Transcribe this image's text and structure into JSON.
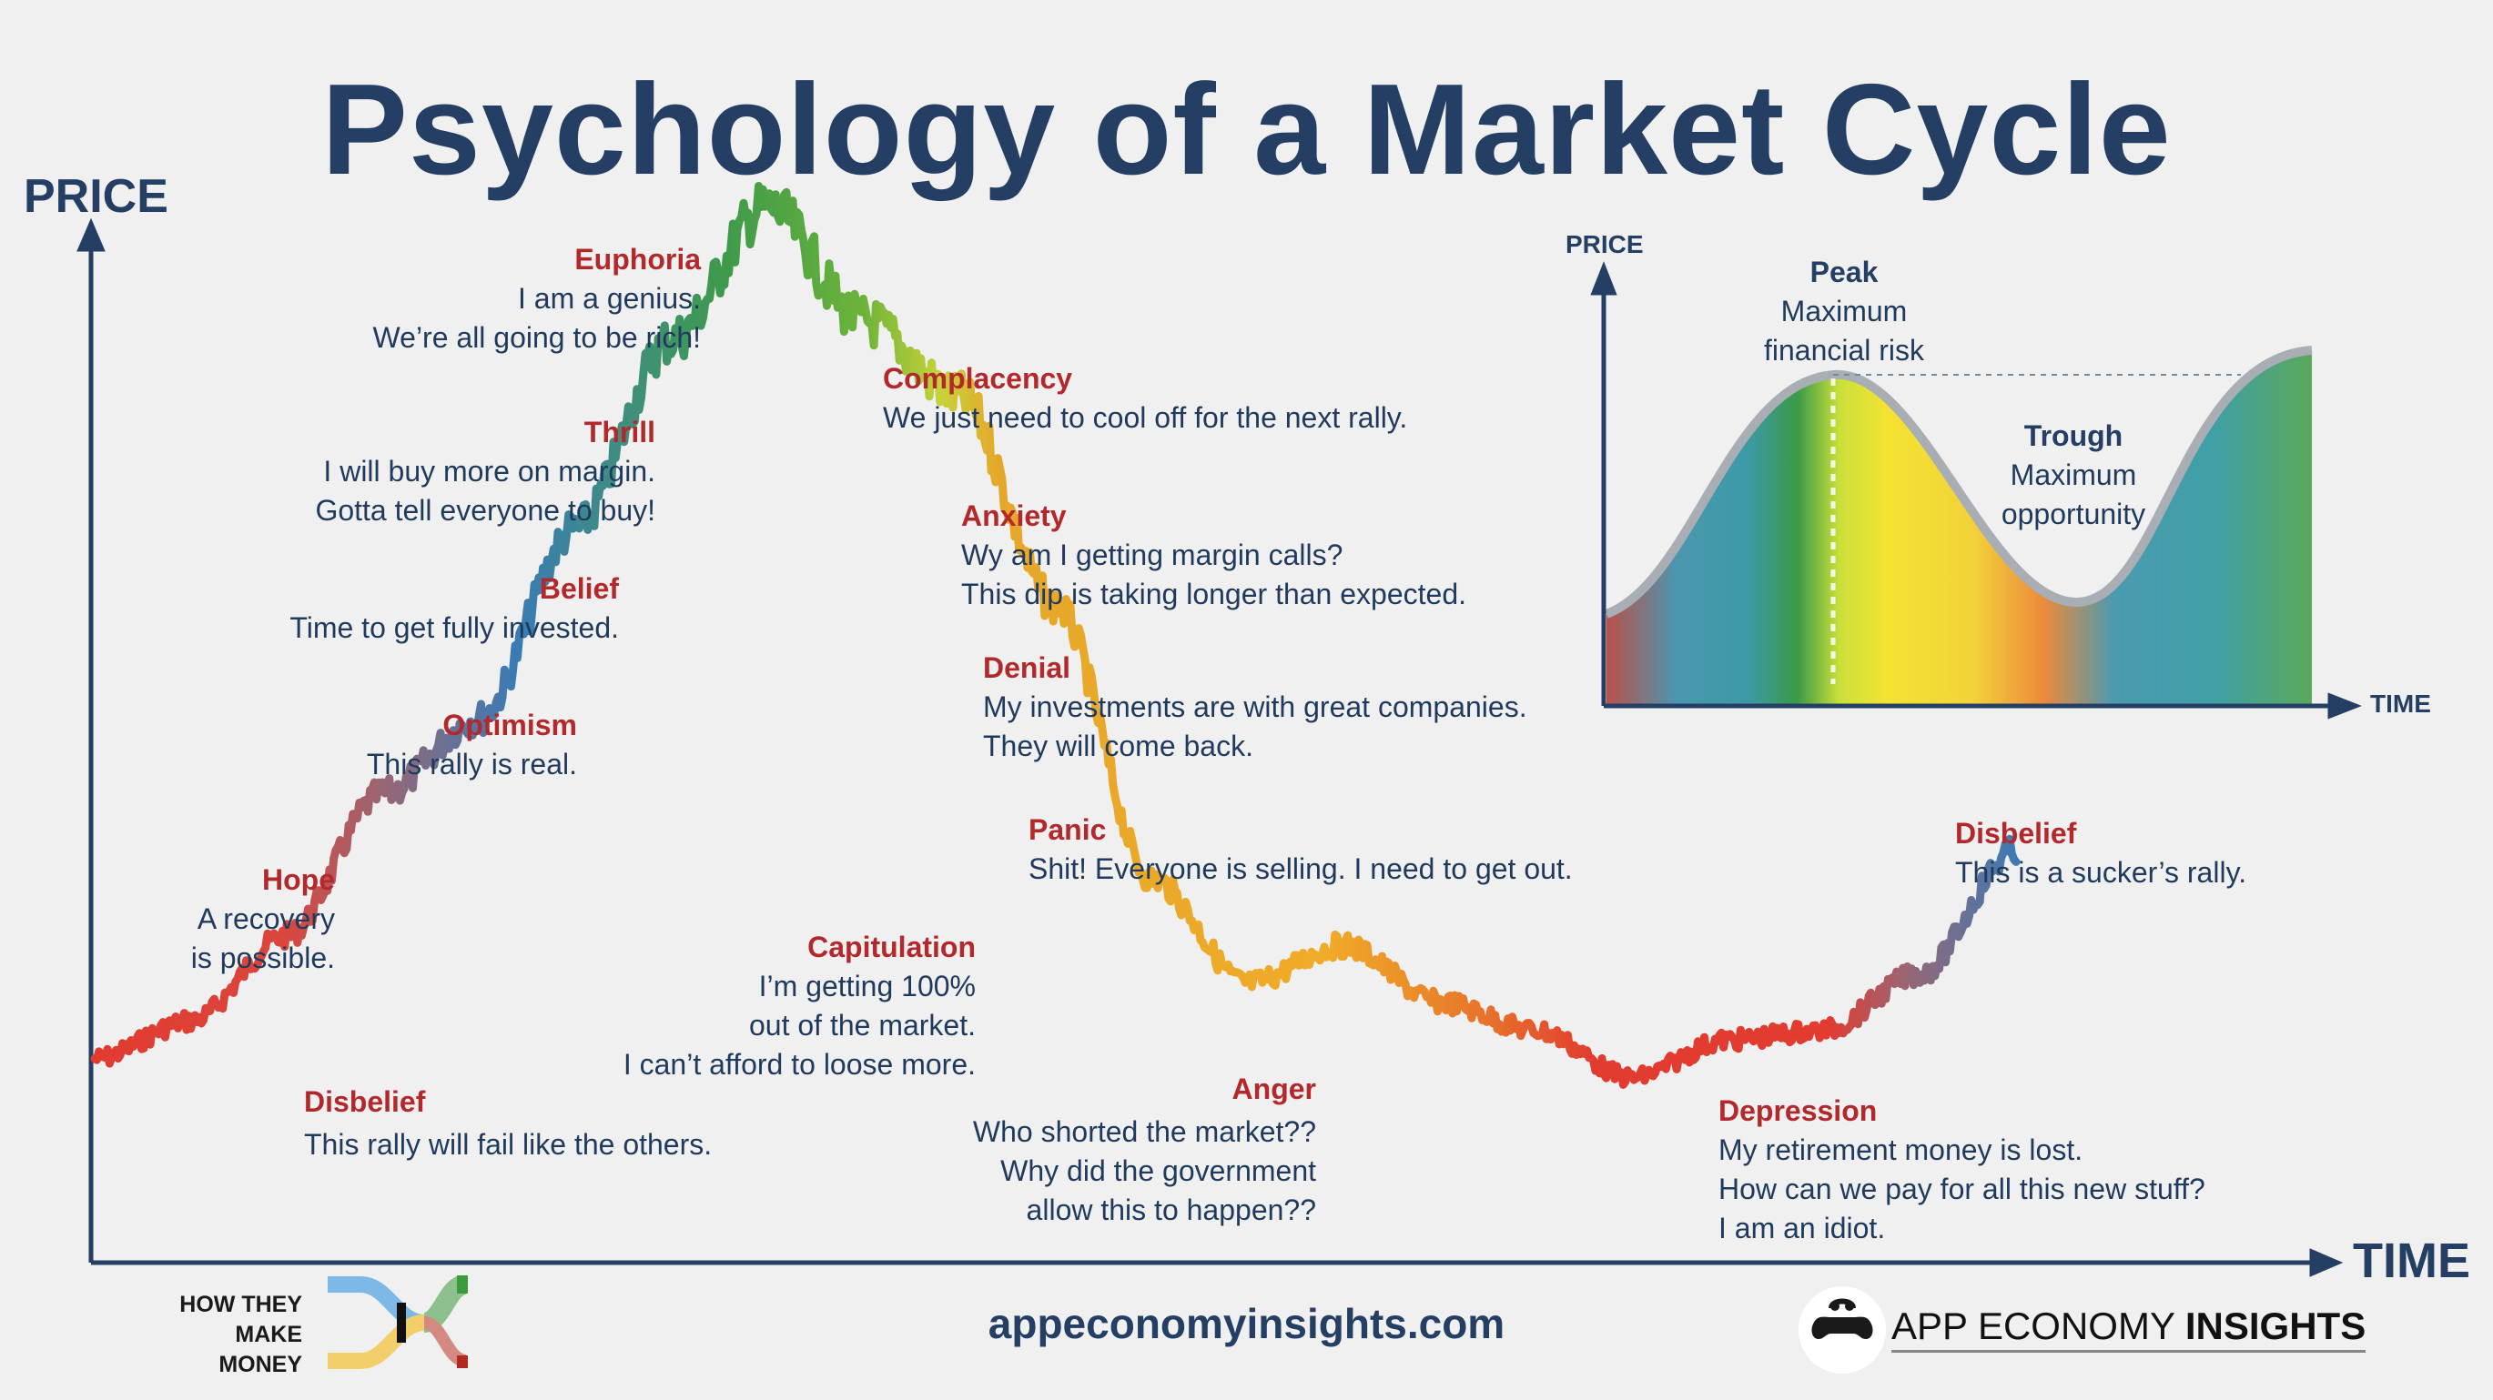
{
  "title": "Psychology of a Market Cycle",
  "axes": {
    "y": "PRICE",
    "x": "TIME"
  },
  "stages": [
    {
      "id": "disbelief-1",
      "heading": "Disbelief",
      "lines": [
        "This rally will fail like the others."
      ],
      "color": "#e23b30"
    },
    {
      "id": "hope",
      "heading": "Hope",
      "lines": [
        "A recovery",
        "is possible."
      ],
      "color": "#9a6673"
    },
    {
      "id": "optimism",
      "heading": "Optimism",
      "lines": [
        "This rally is real."
      ],
      "color": "#3a7bb5"
    },
    {
      "id": "belief",
      "heading": "Belief",
      "lines": [
        "Time to get fully invested."
      ],
      "color": "#3f9a4a"
    },
    {
      "id": "thrill",
      "heading": "Thrill",
      "lines": [
        "I will buy more on margin.",
        "Gotta tell everyone to buy!"
      ],
      "color": "#3f9a4a"
    },
    {
      "id": "euphoria",
      "heading": "Euphoria",
      "lines": [
        "I am a genius.",
        "We’re all going to be rich!"
      ],
      "color": "#6cb33a"
    },
    {
      "id": "complacency",
      "heading": "Complacency",
      "lines": [
        "We just need to cool off for the next rally."
      ],
      "color": "#c7d23a"
    },
    {
      "id": "anxiety",
      "heading": "Anxiety",
      "lines": [
        "Wy am I getting margin calls?",
        "This dip is taking longer than expected."
      ],
      "color": "#e5a72a"
    },
    {
      "id": "denial",
      "heading": "Denial",
      "lines": [
        "My investments are with great companies.",
        "They will come back."
      ],
      "color": "#f0ab28"
    },
    {
      "id": "panic",
      "heading": "Panic",
      "lines": [
        "Shit! Everyone is selling. I need to get out."
      ],
      "color": "#f0ab28"
    },
    {
      "id": "capitulation",
      "heading": "Capitulation",
      "lines": [
        "I’m getting 100%",
        "out of the market.",
        "I can’t afford to loose more."
      ],
      "color": "#f0ab28"
    },
    {
      "id": "anger",
      "heading": "Anger",
      "lines": [
        "Who shorted the market??",
        "Why did the government",
        "allow this to happen??"
      ],
      "color": "#e8752b"
    },
    {
      "id": "depression",
      "heading": "Depression",
      "lines": [
        "My retirement money is lost.",
        "How can we pay for all this new stuff?",
        "I am an idiot."
      ],
      "color": "#e23b30"
    },
    {
      "id": "disbelief-2",
      "heading": "Disbelief",
      "lines": [
        "This is a sucker’s rally."
      ],
      "color": "#3a7bb5"
    }
  ],
  "chart_data": {
    "type": "line",
    "title": "Psychology of a Market Cycle",
    "xlabel": "TIME",
    "ylabel": "PRICE",
    "grid": false,
    "x": [
      0,
      5,
      10,
      15,
      20,
      25,
      30,
      35,
      40,
      45,
      50,
      55,
      60,
      65,
      70,
      75,
      80,
      85,
      90,
      95,
      100
    ],
    "y": [
      10,
      14,
      23,
      38,
      46,
      66,
      86,
      100,
      88,
      80,
      58,
      29,
      18,
      22,
      16,
      13,
      8,
      12,
      13,
      19,
      32
    ],
    "stages_at_x": [
      "Disbelief",
      "Hope",
      "Optimism",
      "Belief",
      "Thrill",
      "Euphoria",
      "Complacency",
      "Anxiety",
      "Denial",
      "Panic",
      "Capitulation",
      "Anger",
      "Depression",
      "Disbelief"
    ]
  },
  "inset": {
    "y_label": "PRICE",
    "x_label": "TIME",
    "peak": {
      "title": "Peak",
      "lines": [
        "Maximum",
        "financial risk"
      ]
    },
    "trough": {
      "title": "Trough",
      "lines": [
        "Maximum",
        "opportunity"
      ]
    }
  },
  "footer": {
    "url": "appeconomyinsights.com",
    "left_logo_lines": [
      "HOW THEY",
      "MAKE MONEY"
    ],
    "right_logo_regular": "APP ECONOMY ",
    "right_logo_bold": "INSIGHTS"
  },
  "colors": {
    "title": "#243f63",
    "heading": "#b3282b",
    "text": "#1f3a5c",
    "background": "#f0f0f0"
  }
}
